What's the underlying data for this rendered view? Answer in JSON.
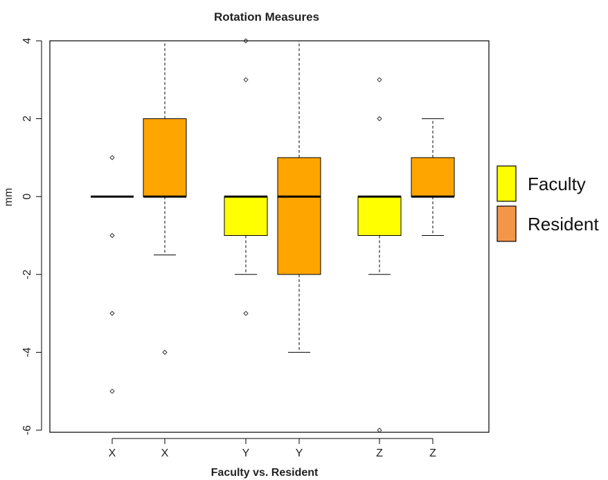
{
  "chart_data": {
    "type": "boxplot",
    "title": "Rotation Measures",
    "xlabel": "Faculty vs. Resident",
    "ylabel": "mm",
    "ylim": [
      -6,
      4
    ],
    "yticks": [
      -6,
      -4,
      -2,
      0,
      2,
      4
    ],
    "ytick_labels": [
      "-6",
      "-4",
      "-2",
      "0",
      "2",
      "4"
    ],
    "categories": [
      "X",
      "X",
      "Y",
      "Y",
      "Z",
      "Z"
    ],
    "legend": {
      "placement": "right",
      "entries": [
        {
          "label": "Faculty",
          "color": "#ffff00"
        },
        {
          "label": "Resident",
          "color": "#f4964a"
        }
      ]
    },
    "boxes": [
      {
        "label": "X",
        "group": "Faculty",
        "color": "#ffff00",
        "whisker_low": 0,
        "q1": 0,
        "median": 0,
        "q3": 0,
        "whisker_high": 0,
        "outliers": [
          1,
          -1,
          -3,
          -5
        ]
      },
      {
        "label": "X",
        "group": "Resident",
        "color": "#ffa500",
        "whisker_low": -1.5,
        "q1": 0,
        "median": 0,
        "q3": 2,
        "whisker_high": 4,
        "outliers": [
          -4
        ]
      },
      {
        "label": "Y",
        "group": "Faculty",
        "color": "#ffff00",
        "whisker_low": -2,
        "q1": -1,
        "median": 0,
        "q3": 0,
        "whisker_high": 0,
        "outliers": [
          3,
          4,
          -3
        ]
      },
      {
        "label": "Y",
        "group": "Resident",
        "color": "#ffa500",
        "whisker_low": -4,
        "q1": -2,
        "median": 0,
        "q3": 1,
        "whisker_high": 4,
        "outliers": []
      },
      {
        "label": "Z",
        "group": "Faculty",
        "color": "#ffff00",
        "whisker_low": -2,
        "q1": -1,
        "median": 0,
        "q3": 0,
        "whisker_high": 0,
        "outliers": [
          3,
          2,
          -6
        ]
      },
      {
        "label": "Z",
        "group": "Resident",
        "color": "#ffa500",
        "whisker_low": -1,
        "q1": 0,
        "median": 0,
        "q3": 1,
        "whisker_high": 2,
        "outliers": []
      }
    ]
  }
}
